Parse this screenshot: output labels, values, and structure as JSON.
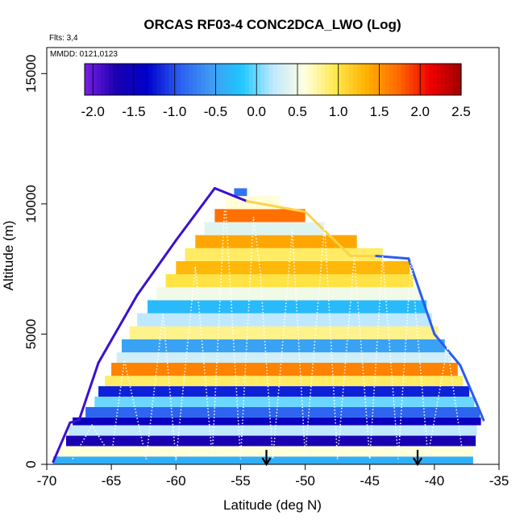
{
  "chart_data": {
    "type": "heatmap",
    "title": "ORCAS RF03-4 CONC2DCA_LWO (Log)",
    "xlabel": "Latitude (deg N)",
    "ylabel": "Altitude (m)",
    "xlim": [
      -70,
      -35
    ],
    "ylim": [
      0,
      16000
    ],
    "x_ticks": [
      -70,
      -65,
      -60,
      -55,
      -50,
      -45,
      -40,
      -35
    ],
    "y_ticks": [
      0,
      5000,
      10000,
      15000
    ],
    "grid": false,
    "notes": {
      "flights": "Flts: 3,4",
      "dates": "MMDD: 0121,0123"
    },
    "colorbar": {
      "placement": "top-inside",
      "min": -2.1,
      "max": 2.5,
      "ticks": [
        -2.0,
        -1.5,
        -1.0,
        -0.5,
        0.0,
        0.5,
        1.0,
        1.5,
        2.0,
        2.5
      ],
      "tick_labels": [
        "-2.0",
        "-1.5",
        "-1.0",
        "-0.5",
        "0.0",
        "0.5",
        "1.0",
        "1.5",
        "2.0",
        "2.5"
      ],
      "colors": [
        "#7a1ee6",
        "#1a00b0",
        "#0000cc",
        "#2a5cf0",
        "#3f9af2",
        "#1ec8ff",
        "#bfe8ff",
        "#ffffe0",
        "#ffe84a",
        "#ffb000",
        "#ff6a00",
        "#f00000",
        "#a00000"
      ]
    },
    "envelope": {
      "description_points_lat": [
        -69.5,
        -68.2,
        -67.5,
        -66.0,
        -63.0,
        -60.0,
        -57.0,
        -55.5,
        -54.5,
        -50.0,
        -46.5,
        -44.5,
        -42.0,
        -40.0,
        -38.0,
        -36.7,
        -36.2
      ],
      "top_altitude_m": [
        100,
        1600,
        1700,
        3900,
        6500,
        8600,
        10600,
        10300,
        10100,
        9700,
        8000,
        8000,
        7900,
        5000,
        3800,
        2300,
        1700
      ]
    },
    "layers": [
      {
        "alt_low": 0,
        "alt_high": 300,
        "lat_min": -69.5,
        "lat_max": -37.0,
        "value": -0.4
      },
      {
        "alt_low": 300,
        "alt_high": 700,
        "lat_min": -69.0,
        "lat_max": -37.0,
        "value": 0.6
      },
      {
        "alt_low": 700,
        "alt_high": 1100,
        "lat_min": -68.5,
        "lat_max": -36.8,
        "value": -1.7
      },
      {
        "alt_low": 1100,
        "alt_high": 1500,
        "lat_min": -68.3,
        "lat_max": -36.7,
        "value": 0.2
      },
      {
        "alt_low": 1500,
        "alt_high": 1800,
        "lat_min": -68.0,
        "lat_max": -36.4,
        "value": -1.5
      },
      {
        "alt_low": 1800,
        "alt_high": 2200,
        "lat_min": -67.0,
        "lat_max": -36.5,
        "value": -0.9
      },
      {
        "alt_low": 2200,
        "alt_high": 2600,
        "lat_min": -66.3,
        "lat_max": -36.9,
        "value": 0.0
      },
      {
        "alt_low": 2600,
        "alt_high": 3000,
        "lat_min": -66.0,
        "lat_max": -37.3,
        "value": -1.2
      },
      {
        "alt_low": 3000,
        "alt_high": 3400,
        "lat_min": -65.5,
        "lat_max": -37.8,
        "value": 0.9
      },
      {
        "alt_low": 3400,
        "alt_high": 3900,
        "lat_min": -65.0,
        "lat_max": -38.2,
        "value": 1.6
      },
      {
        "alt_low": 3900,
        "alt_high": 4300,
        "lat_min": -64.6,
        "lat_max": -38.7,
        "value": 0.3
      },
      {
        "alt_low": 4300,
        "alt_high": 4800,
        "lat_min": -64.2,
        "lat_max": -39.2,
        "value": -0.5
      },
      {
        "alt_low": 4800,
        "alt_high": 5300,
        "lat_min": -63.6,
        "lat_max": -39.7,
        "value": 0.8
      },
      {
        "alt_low": 5300,
        "alt_high": 5800,
        "lat_min": -63.0,
        "lat_max": -40.2,
        "value": 0.2
      },
      {
        "alt_low": 5800,
        "alt_high": 6300,
        "lat_min": -62.2,
        "lat_max": -40.6,
        "value": -0.3
      },
      {
        "alt_low": 6300,
        "alt_high": 6800,
        "lat_min": -61.5,
        "lat_max": -41.0,
        "value": 0.5
      },
      {
        "alt_low": 6800,
        "alt_high": 7300,
        "lat_min": -60.8,
        "lat_max": -41.6,
        "value": 1.0
      },
      {
        "alt_low": 7300,
        "alt_high": 7800,
        "lat_min": -60.0,
        "lat_max": -41.9,
        "value": 1.3
      },
      {
        "alt_low": 7800,
        "alt_high": 8300,
        "lat_min": -59.3,
        "lat_max": -44.0,
        "value": 0.9
      },
      {
        "alt_low": 8300,
        "alt_high": 8800,
        "lat_min": -58.5,
        "lat_max": -46.0,
        "value": 1.4
      },
      {
        "alt_low": 8800,
        "alt_high": 9300,
        "lat_min": -57.8,
        "lat_max": -48.5,
        "value": 0.4
      },
      {
        "alt_low": 9300,
        "alt_high": 9800,
        "lat_min": -57.0,
        "lat_max": -50.0,
        "value": 1.7
      },
      {
        "alt_low": 9800,
        "alt_high": 10300,
        "lat_min": -56.2,
        "lat_max": -52.0,
        "value": 0.6
      },
      {
        "alt_low": 10300,
        "alt_high": 10600,
        "lat_min": -55.5,
        "lat_max": -54.5,
        "value": -0.8
      }
    ],
    "markers": [
      {
        "lat": -53.0,
        "type": "down-arrow"
      },
      {
        "lat": -41.3,
        "type": "down-arrow"
      }
    ]
  }
}
